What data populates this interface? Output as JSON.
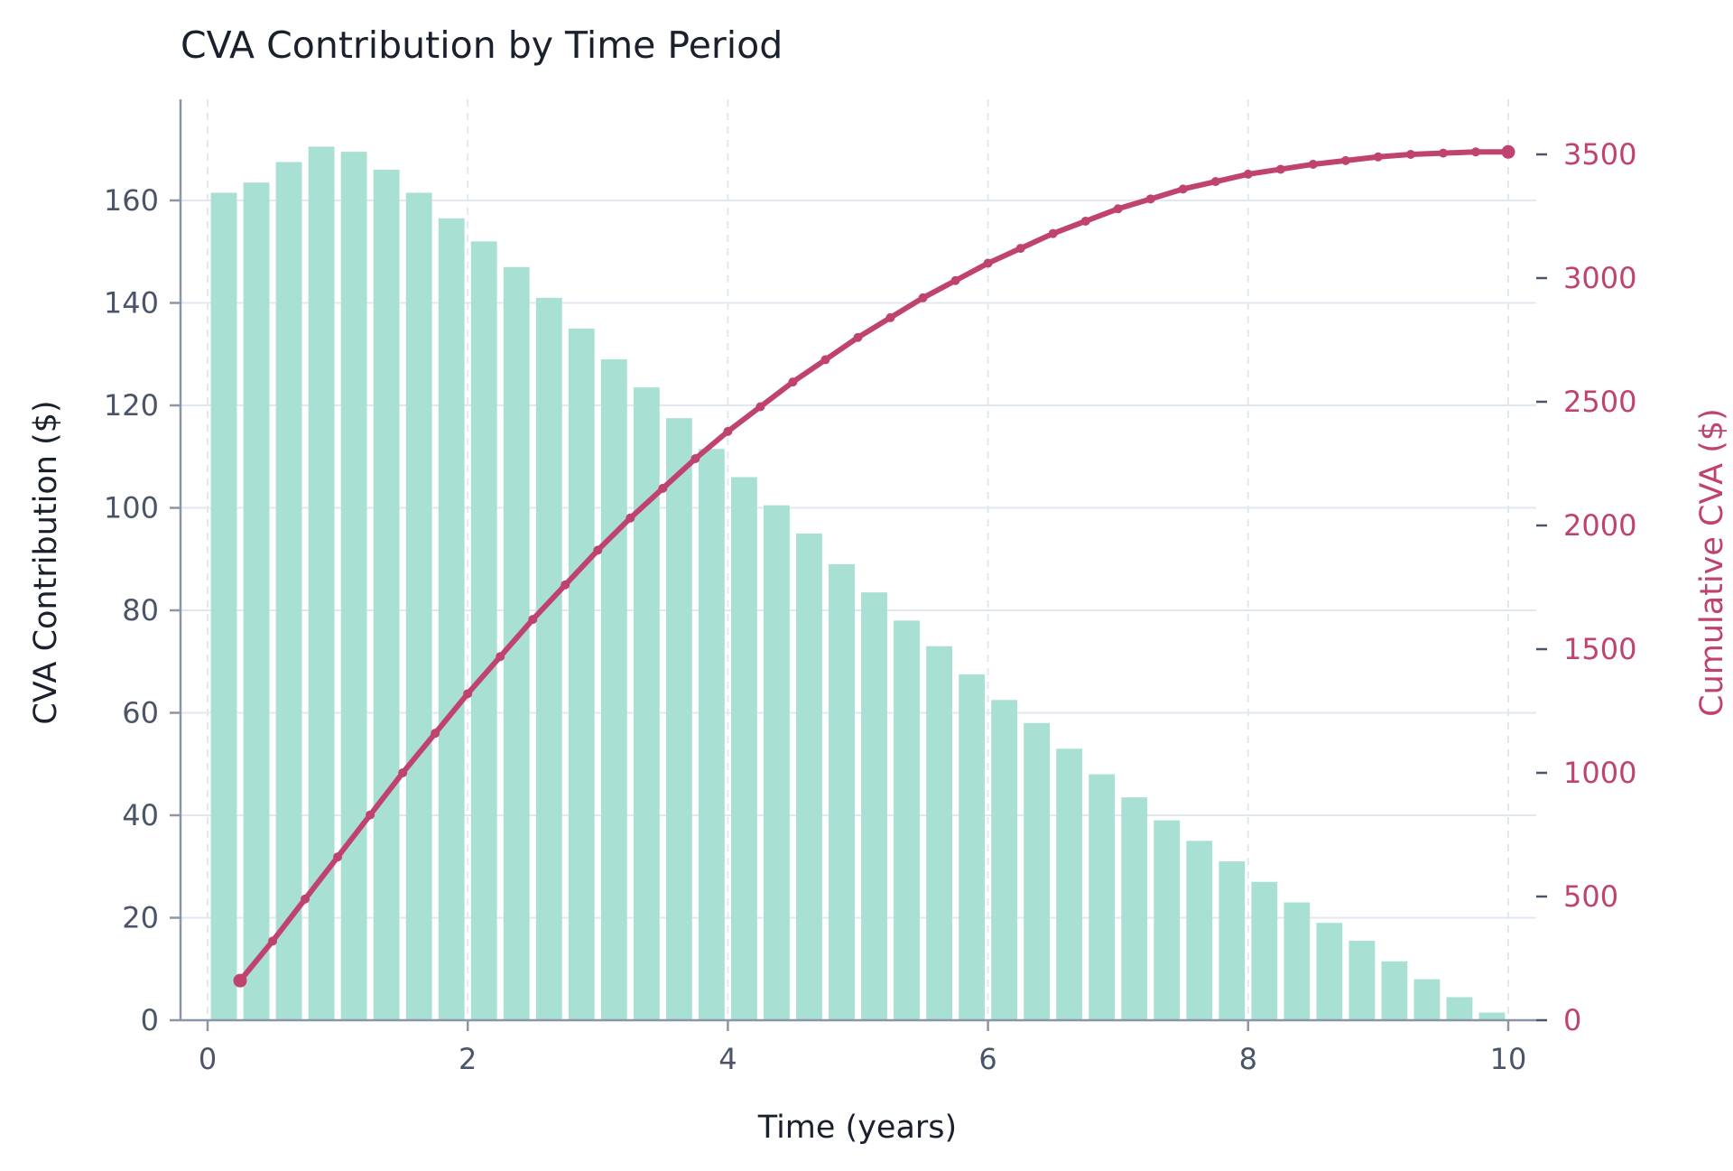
{
  "chart_data": {
    "type": "bar+line",
    "title": "CVA Contribution by Time Period",
    "xlabel": "Time (years)",
    "ylabel_left": "CVA Contribution ($)",
    "ylabel_right": "Cumulative CVA ($)",
    "xlim": [
      -0.2,
      10.2
    ],
    "ylim_left": [
      0,
      178
    ],
    "ylim_right": [
      0,
      3620
    ],
    "x_ticks": [
      "0",
      "2",
      "4",
      "6",
      "8",
      "10"
    ],
    "y_ticks_left": [
      "0",
      "20",
      "40",
      "60",
      "80",
      "100",
      "120",
      "140",
      "160"
    ],
    "y_ticks_right": [
      "0",
      "500",
      "1000",
      "1500",
      "2000",
      "2500",
      "3000",
      "3500"
    ],
    "grid": true,
    "colors": {
      "bars": "#a8e0d3",
      "line": "#c0436f",
      "grid": "#e2e8f0",
      "axis": "#8a96a8"
    },
    "series": [
      {
        "name": "CVA Contribution ($)",
        "axis": "left",
        "kind": "bar",
        "x": [
          0.25,
          0.5,
          0.75,
          1.0,
          1.25,
          1.5,
          1.75,
          2.0,
          2.25,
          2.5,
          2.75,
          3.0,
          3.25,
          3.5,
          3.75,
          4.0,
          4.25,
          4.5,
          4.75,
          5.0,
          5.25,
          5.5,
          5.75,
          6.0,
          6.25,
          6.5,
          6.75,
          7.0,
          7.25,
          7.5,
          7.75,
          8.0,
          8.25,
          8.5,
          8.75,
          9.0,
          9.25,
          9.5,
          9.75,
          10.0
        ],
        "values": [
          161.5,
          163.5,
          167.5,
          170.5,
          169.5,
          166,
          161.5,
          156.5,
          152,
          147,
          141,
          135,
          129,
          123.5,
          117.5,
          111.5,
          106,
          100.5,
          95,
          89,
          83.5,
          78,
          73,
          67.5,
          62.5,
          58,
          53,
          48,
          43.5,
          39,
          35,
          31,
          27,
          23,
          19,
          15.5,
          11.5,
          8,
          4.5,
          1.5
        ]
      },
      {
        "name": "Cumulative CVA ($)",
        "axis": "right",
        "kind": "line",
        "x": [
          0.25,
          0.5,
          0.75,
          1.0,
          1.25,
          1.5,
          1.75,
          2.0,
          2.25,
          2.5,
          2.75,
          3.0,
          3.25,
          3.5,
          3.75,
          4.0,
          4.25,
          4.5,
          4.75,
          5.0,
          5.25,
          5.5,
          5.75,
          6.0,
          6.25,
          6.5,
          6.75,
          7.0,
          7.25,
          7.5,
          7.75,
          8.0,
          8.25,
          8.5,
          8.75,
          9.0,
          9.25,
          9.5,
          9.75,
          10.0
        ],
        "values": [
          160,
          320,
          490,
          660,
          830,
          1000,
          1160,
          1320,
          1470,
          1620,
          1760,
          1900,
          2030,
          2150,
          2270,
          2380,
          2480,
          2580,
          2670,
          2760,
          2840,
          2920,
          2990,
          3060,
          3120,
          3180,
          3230,
          3280,
          3320,
          3360,
          3390,
          3420,
          3440,
          3460,
          3475,
          3490,
          3500,
          3505,
          3510,
          3510
        ]
      }
    ]
  }
}
